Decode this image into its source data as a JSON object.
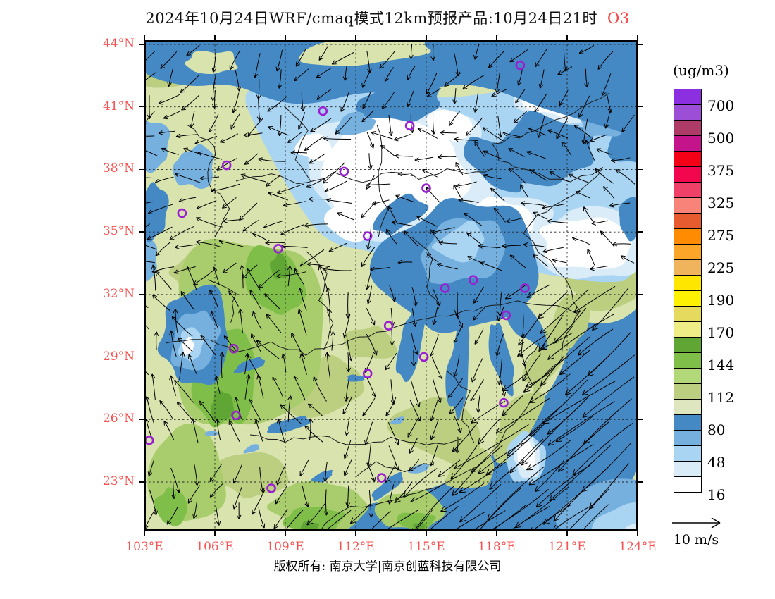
{
  "title": {
    "text": "2024年10月24日WRF/cmaq模式12km预报产品:10月24日21时",
    "species": "O3"
  },
  "footer": {
    "copyright": "版权所有: 南京大学|南京创蓝科技有限公司"
  },
  "colors": {
    "axis_label": "#fa5252",
    "species_label": "#f84444",
    "marker_ring": "#9a1ed2",
    "map_palette": {
      "pale_green": "#d9e3ae",
      "yellow_green": "#bcce80",
      "mid_green": "#a9cd6c",
      "green": "#7fbe48",
      "dark_green": "#5fa634",
      "blue": "#4589c4",
      "light_blue": "#76b0de",
      "pale_blue": "#aad5f2",
      "palest_blue": "#d9ecf8",
      "white": "#ffffff"
    }
  },
  "chart_data": {
    "type": "map",
    "title": "2024年10月24日WRF/cmaq模式12km预报产品:10月24日21时 O3",
    "variable": "O3",
    "units": "(ug/m3)",
    "extent": {
      "lon": [
        103,
        124
      ],
      "lat": [
        20.7,
        44.2
      ]
    },
    "x_ticks": [
      {
        "lon": 103,
        "label": "103°E"
      },
      {
        "lon": 106,
        "label": "106°E"
      },
      {
        "lon": 109,
        "label": "109°E"
      },
      {
        "lon": 112,
        "label": "112°E"
      },
      {
        "lon": 115,
        "label": "115°E"
      },
      {
        "lon": 118,
        "label": "118°E"
      },
      {
        "lon": 121,
        "label": "121°E"
      },
      {
        "lon": 124,
        "label": "124°E"
      }
    ],
    "y_ticks": [
      {
        "lat": 44,
        "label": "44°N"
      },
      {
        "lat": 41,
        "label": "41°N"
      },
      {
        "lat": 38,
        "label": "38°N"
      },
      {
        "lat": 35,
        "label": "35°N"
      },
      {
        "lat": 32,
        "label": "32°N"
      },
      {
        "lat": 29,
        "label": "29°N"
      },
      {
        "lat": 26,
        "label": "26°N"
      },
      {
        "lat": 23,
        "label": "23°N"
      }
    ],
    "grid": "dashed, every 3 degrees",
    "legend": {
      "units": "(ug/m3)",
      "labels": [
        "700",
        "500",
        "375",
        "325",
        "275",
        "225",
        "190",
        "170",
        "144",
        "112",
        "80",
        "48",
        "16"
      ],
      "block_colors_top_to_bottom": [
        "#8b2fe0",
        "#9c4fd6",
        "#ae3a68",
        "#c4148c",
        "#f30016",
        "#f2074e",
        "#ef4168",
        "#f88379",
        "#e65c2e",
        "#ff8c00",
        "#fba529",
        "#efb45c",
        "#ffe600",
        "#fff200",
        "#e5d95e",
        "#efee86",
        "#5fa634",
        "#80be4a",
        "#b3d87a",
        "#bcce80",
        "#dde6be",
        "#4589c4",
        "#76b0de",
        "#aad5f2",
        "#d9ecf8",
        "#ffffff"
      ]
    },
    "wind_scale": {
      "label": "10 m/s",
      "value_m_s": 10
    },
    "city_markers": [
      {
        "lon": 119.0,
        "lat": 43.0
      },
      {
        "lon": 110.6,
        "lat": 40.8
      },
      {
        "lon": 114.3,
        "lat": 40.1
      },
      {
        "lon": 115.0,
        "lat": 37.1
      },
      {
        "lon": 106.5,
        "lat": 38.2
      },
      {
        "lon": 111.5,
        "lat": 37.9
      },
      {
        "lon": 104.6,
        "lat": 35.9
      },
      {
        "lon": 108.7,
        "lat": 34.2
      },
      {
        "lon": 112.5,
        "lat": 34.8
      },
      {
        "lon": 115.8,
        "lat": 32.3
      },
      {
        "lon": 117.0,
        "lat": 32.7
      },
      {
        "lon": 119.2,
        "lat": 32.3
      },
      {
        "lon": 118.4,
        "lat": 31.0
      },
      {
        "lon": 113.4,
        "lat": 30.5
      },
      {
        "lon": 106.8,
        "lat": 29.4
      },
      {
        "lon": 114.9,
        "lat": 29.0
      },
      {
        "lon": 112.5,
        "lat": 28.2
      },
      {
        "lon": 118.3,
        "lat": 26.8
      },
      {
        "lon": 106.9,
        "lat": 26.2
      },
      {
        "lon": 103.2,
        "lat": 25.0
      },
      {
        "lon": 108.4,
        "lat": 22.7
      },
      {
        "lon": 113.1,
        "lat": 23.2
      }
    ]
  }
}
